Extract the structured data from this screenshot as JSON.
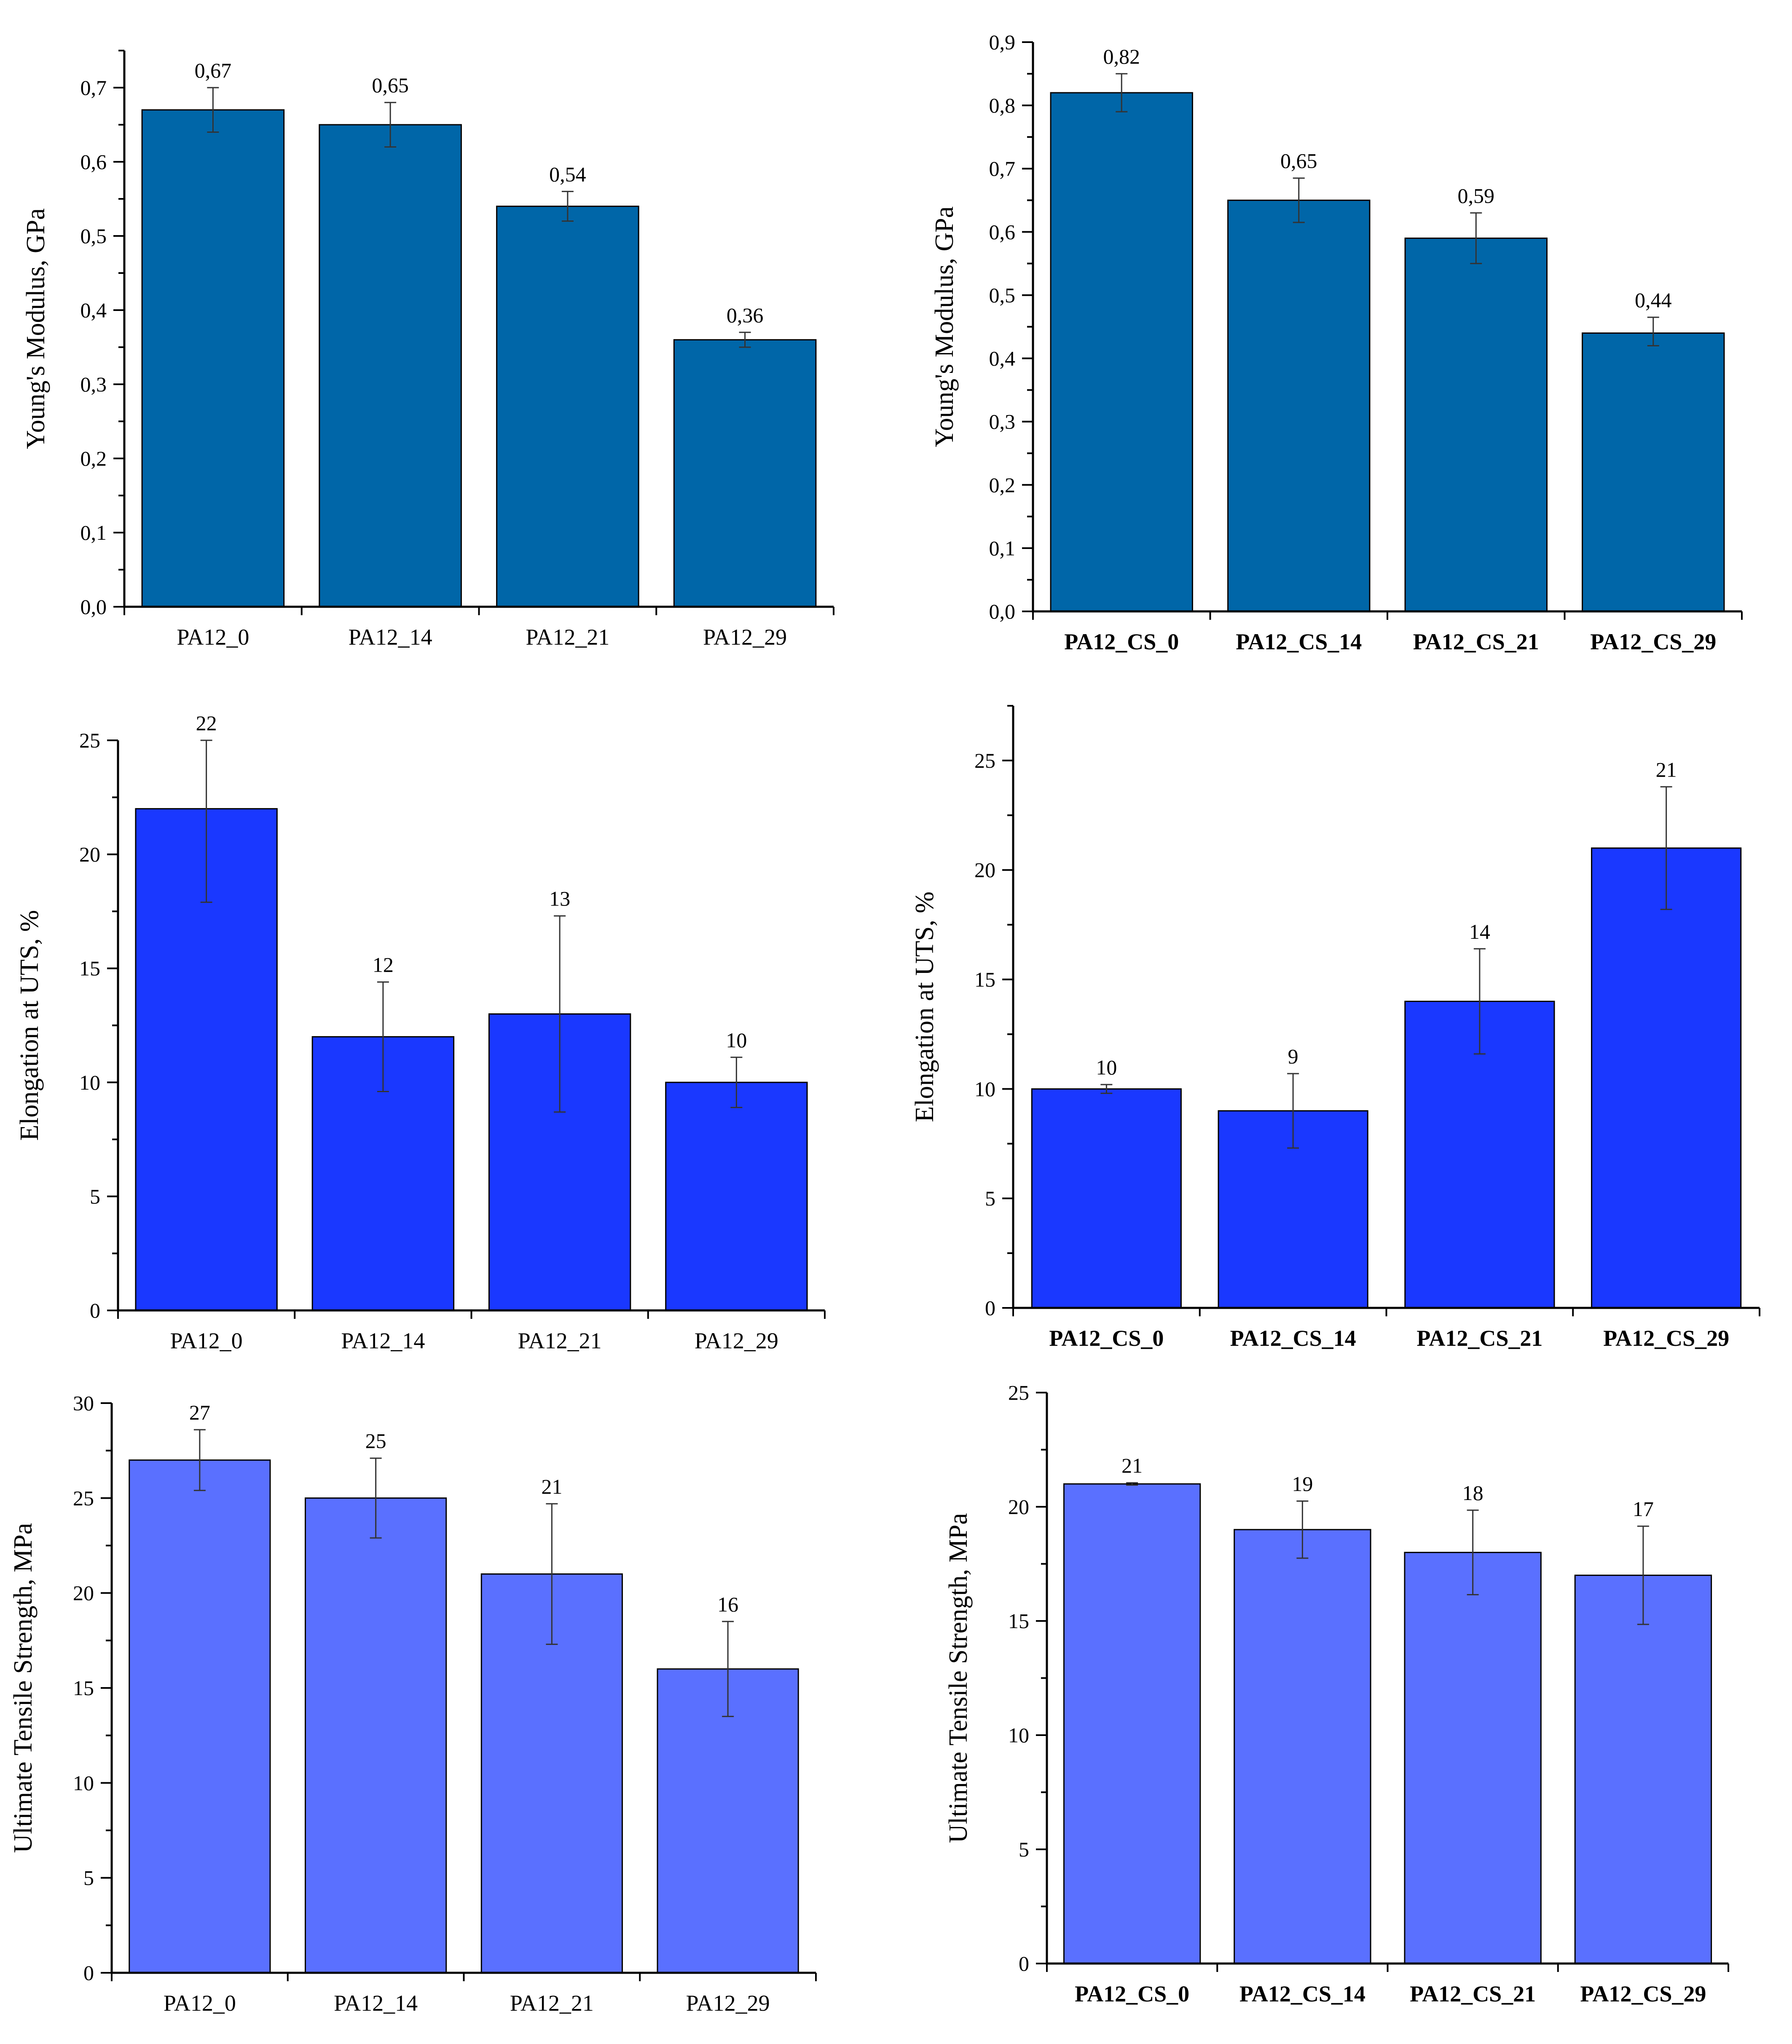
{
  "colors": {
    "modulus": "#0066A8",
    "elongation": "#1A38FF",
    "uts": "#5A70FF"
  },
  "chart_data": [
    {
      "type": "bar",
      "title": "",
      "ylabel": "Young's Modulus, GPa",
      "xlabel": "",
      "categories": [
        "PA12_0",
        "PA12_14",
        "PA12_21",
        "PA12_29"
      ],
      "values": [
        0.67,
        0.65,
        0.54,
        0.36
      ],
      "value_labels": [
        "0,67",
        "0,65",
        "0,54",
        "0,36"
      ],
      "error_low": [
        0.64,
        0.62,
        0.52,
        0.35
      ],
      "error_high": [
        0.7,
        0.68,
        0.56,
        0.37
      ],
      "ylim": [
        0,
        0.75
      ],
      "yticks": [
        0,
        0.1,
        0.2,
        0.3,
        0.4,
        0.5,
        0.6,
        0.7
      ],
      "ytick_labels": [
        "0,0",
        "0,1",
        "0,2",
        "0,3",
        "0,4",
        "0,5",
        "0,6",
        "0,7"
      ],
      "color_key": "modulus",
      "bold_categories": false
    },
    {
      "type": "bar",
      "title": "",
      "ylabel": "Young's Modulus, GPa",
      "xlabel": "",
      "categories": [
        "PA12_CS_0",
        "PA12_CS_14",
        "PA12_CS_21",
        "PA12_CS_29"
      ],
      "values": [
        0.82,
        0.65,
        0.59,
        0.44
      ],
      "value_labels": [
        "0,82",
        "0,65",
        "0,59",
        "0,44"
      ],
      "error_low": [
        0.79,
        0.615,
        0.55,
        0.42
      ],
      "error_high": [
        0.85,
        0.685,
        0.63,
        0.465
      ],
      "ylim": [
        0,
        0.9
      ],
      "yticks": [
        0,
        0.1,
        0.2,
        0.3,
        0.4,
        0.5,
        0.6,
        0.7,
        0.8,
        0.9
      ],
      "ytick_labels": [
        "0,0",
        "0,1",
        "0,2",
        "0,3",
        "0,4",
        "0,5",
        "0,6",
        "0,7",
        "0,8",
        "0,9"
      ],
      "color_key": "modulus",
      "bold_categories": true
    },
    {
      "type": "bar",
      "title": "",
      "ylabel": "Elongation at UTS, %",
      "xlabel": "",
      "categories": [
        "PA12_0",
        "PA12_14",
        "PA12_21",
        "PA12_29"
      ],
      "values": [
        22,
        12,
        13,
        10
      ],
      "value_labels": [
        "22",
        "12",
        "13",
        "10"
      ],
      "error_low": [
        17.9,
        9.6,
        8.7,
        8.9
      ],
      "error_high": [
        25,
        14.4,
        17.3,
        11.1
      ],
      "ylim": [
        0,
        25
      ],
      "yticks": [
        0,
        5,
        10,
        15,
        20,
        25
      ],
      "ytick_labels": [
        "0",
        "5",
        "10",
        "15",
        "20",
        "25"
      ],
      "color_key": "elongation",
      "bold_categories": false
    },
    {
      "type": "bar",
      "title": "",
      "ylabel": "Elongation at UTS, %",
      "xlabel": "",
      "categories": [
        "PA12_CS_0",
        "PA12_CS_14",
        "PA12_CS_21",
        "PA12_CS_29"
      ],
      "values": [
        10,
        9,
        14,
        21
      ],
      "value_labels": [
        "10",
        "9",
        "14",
        "21"
      ],
      "error_low": [
        9.8,
        7.3,
        11.6,
        18.2
      ],
      "error_high": [
        10.2,
        10.7,
        16.4,
        23.8
      ],
      "ylim": [
        0,
        27.5
      ],
      "yticks": [
        0,
        5,
        10,
        15,
        20,
        25
      ],
      "ytick_labels": [
        "0",
        "5",
        "10",
        "15",
        "20",
        "25"
      ],
      "color_key": "elongation",
      "bold_categories": true
    },
    {
      "type": "bar",
      "title": "",
      "ylabel": "Ultimate Tensile Strength, MPa",
      "xlabel": "",
      "categories": [
        "PA12_0",
        "PA12_14",
        "PA12_21",
        "PA12_29"
      ],
      "values": [
        27,
        25,
        21,
        16
      ],
      "value_labels": [
        "27",
        "25",
        "21",
        "16"
      ],
      "error_low": [
        25.4,
        22.9,
        17.3,
        13.5
      ],
      "error_high": [
        28.6,
        27.1,
        24.7,
        18.5
      ],
      "ylim": [
        0,
        30
      ],
      "yticks": [
        0,
        5,
        10,
        15,
        20,
        25,
        30
      ],
      "ytick_labels": [
        "0",
        "5",
        "10",
        "15",
        "20",
        "25",
        "30"
      ],
      "color_key": "uts",
      "bold_categories": false
    },
    {
      "type": "bar",
      "title": "",
      "ylabel": "Ultimate Tensile Strength, MPa",
      "xlabel": "",
      "categories": [
        "PA12_CS_0",
        "PA12_CS_14",
        "PA12_CS_21",
        "PA12_CS_29"
      ],
      "values": [
        21,
        19,
        18,
        17
      ],
      "value_labels": [
        "21",
        "19",
        "18",
        "17"
      ],
      "error_low": [
        20.95,
        17.75,
        16.15,
        14.85
      ],
      "error_high": [
        21.05,
        20.25,
        19.85,
        19.15
      ],
      "ylim": [
        0,
        25
      ],
      "yticks": [
        0,
        5,
        10,
        15,
        20,
        25
      ],
      "ytick_labels": [
        "0",
        "5",
        "10",
        "15",
        "20",
        "25"
      ],
      "color_key": "uts",
      "bold_categories": true
    }
  ]
}
